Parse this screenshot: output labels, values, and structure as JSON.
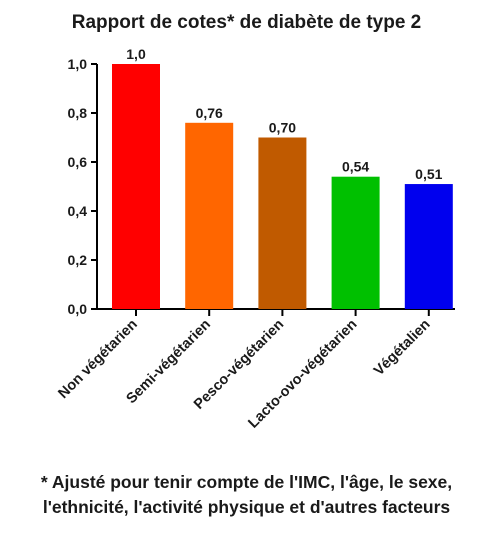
{
  "chart_data": {
    "type": "bar",
    "title": "Rapport de cotes* de diabète de type 2",
    "categories": [
      "Non végétarien",
      "Semi-végétarien",
      "Pesco-végétarien",
      "Lacto-ovo-végétarien",
      "Végétalien"
    ],
    "values": [
      1.0,
      0.76,
      0.7,
      0.54,
      0.51
    ],
    "value_labels": [
      "1,0",
      "0,76",
      "0,70",
      "0,54",
      "0,51"
    ],
    "colors": [
      "#ff0000",
      "#ff6600",
      "#c05a00",
      "#00c000",
      "#0000ee"
    ],
    "ylim": [
      0,
      1.0
    ],
    "yticks": [
      0,
      0.2,
      0.4,
      0.6,
      0.8,
      1.0
    ],
    "ytick_labels": [
      "0,0",
      "0,2",
      "0,4",
      "0,6",
      "0,8",
      "1,0"
    ],
    "xlabel": "",
    "ylabel": "",
    "grid": false,
    "footnote": [
      "* Ajusté pour tenir compte de l'IMC, l'âge, le sexe,",
      "l'ethnicité, l'activité physique et d'autres facteurs"
    ]
  }
}
